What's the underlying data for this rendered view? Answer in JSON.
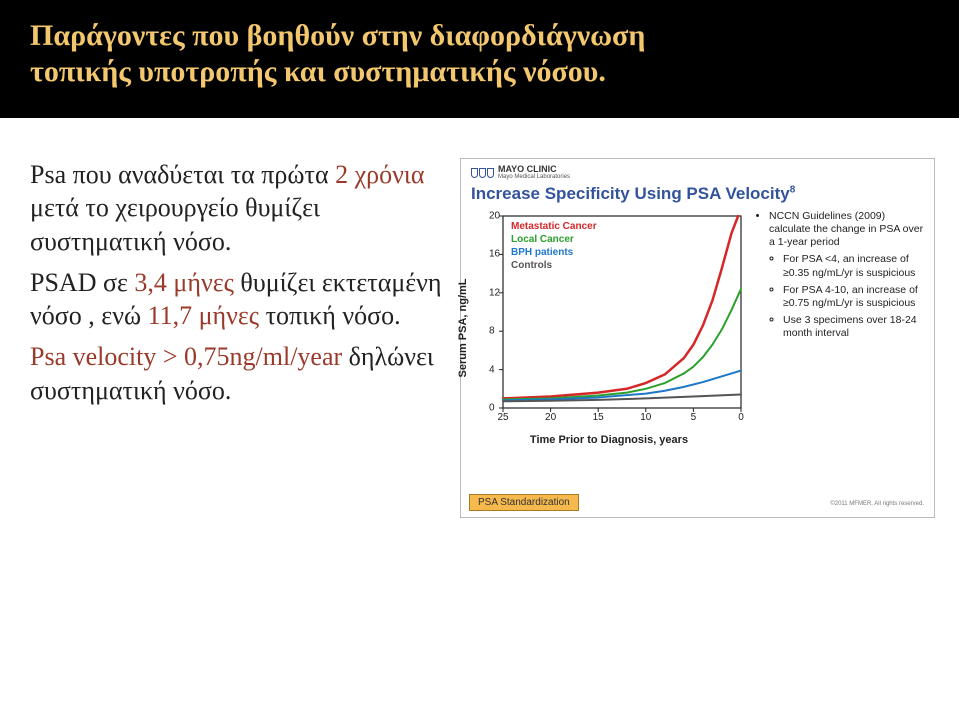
{
  "title": "Παράγοντες που βοηθούν στην διαφορδιάγνωση τοπικής υποτροπής και συστηματικής νόσου.",
  "bulletsLeft": {
    "p1a": "Psa που αναδύεται τα πρώτα ",
    "p1b": "2 χρόνια",
    "p1c": " μετά το χειρουργείο θυμίζει συστηματική νόσο.",
    "p2a": "PSAD σε ",
    "p2b": "3,4 μήνες",
    "p2c": " θυμίζει εκτεταμένη νόσο , ενώ ",
    "p2d": "11,7 μήνες",
    "p2e": " τοπική νόσο.",
    "p3a": "Psa velocity > 0,75ng/ml/year",
    "p3b": " δηλώνει συστηματική νόσο."
  },
  "panel": {
    "brand": "MAYO CLINIC",
    "brandSub": "Mayo Medical Laboratories",
    "title": "Increase Specificity Using PSA Velocity",
    "titleSup": "8",
    "chart": {
      "type": "line",
      "ylabel": "Serum PSA, ng/mL",
      "xlabel": "Time Prior to Diagnosis, years",
      "xlim": [
        25,
        0
      ],
      "ylim": [
        0,
        20
      ],
      "yticks": [
        0,
        4,
        8,
        12,
        16,
        20
      ],
      "xticks": [
        25,
        20,
        15,
        10,
        5,
        0
      ],
      "background_color": "#ffffff",
      "axis_color": "#222222",
      "series": [
        {
          "name": "Metastatic Cancer",
          "color": "#d62728",
          "width": 2.5,
          "points": [
            [
              25,
              1.0
            ],
            [
              20,
              1.2
            ],
            [
              15,
              1.6
            ],
            [
              12,
              2.0
            ],
            [
              10,
              2.6
            ],
            [
              8,
              3.5
            ],
            [
              6,
              5.2
            ],
            [
              5,
              6.6
            ],
            [
              4,
              8.6
            ],
            [
              3,
              11.2
            ],
            [
              2,
              14.6
            ],
            [
              1,
              18.2
            ],
            [
              0.3,
              20
            ]
          ]
        },
        {
          "name": "Local Cancer",
          "color": "#2ca02c",
          "width": 2,
          "points": [
            [
              25,
              0.9
            ],
            [
              20,
              1.0
            ],
            [
              15,
              1.3
            ],
            [
              12,
              1.6
            ],
            [
              10,
              2.0
            ],
            [
              8,
              2.6
            ],
            [
              6,
              3.6
            ],
            [
              5,
              4.3
            ],
            [
              4,
              5.3
            ],
            [
              3,
              6.6
            ],
            [
              2,
              8.2
            ],
            [
              1,
              10.2
            ],
            [
              0,
              12.4
            ]
          ]
        },
        {
          "name": "BPH patients",
          "color": "#1f77c9",
          "width": 2,
          "points": [
            [
              25,
              0.8
            ],
            [
              20,
              0.9
            ],
            [
              15,
              1.1
            ],
            [
              10,
              1.5
            ],
            [
              8,
              1.8
            ],
            [
              6,
              2.2
            ],
            [
              4,
              2.7
            ],
            [
              2,
              3.3
            ],
            [
              0,
              3.9
            ]
          ]
        },
        {
          "name": "Controls",
          "color": "#555555",
          "width": 2,
          "points": [
            [
              25,
              0.7
            ],
            [
              20,
              0.75
            ],
            [
              15,
              0.85
            ],
            [
              10,
              1.0
            ],
            [
              5,
              1.2
            ],
            [
              0,
              1.4
            ]
          ]
        }
      ]
    },
    "side": {
      "head": "NCCN Guidelines (2009) calculate the change in PSA over a 1-year period",
      "b1a": "For PSA <4, an increase of ≥0.35 ng/mL/yr is suspicious",
      "b2a": "For PSA 4-10, an increase of ≥0.75 ng/mL/yr is suspicious",
      "b3a": "Use 3 specimens over 18-24 month interval"
    },
    "footerTab": "PSA Standardization",
    "copyright": "©2011 MFMER. All rights reserved."
  },
  "colors": {
    "title": "#f2c76d",
    "bg": "#000000",
    "body_bg": "#ffffff",
    "emph": "#9a3a2a",
    "panel_title": "#33549c"
  }
}
